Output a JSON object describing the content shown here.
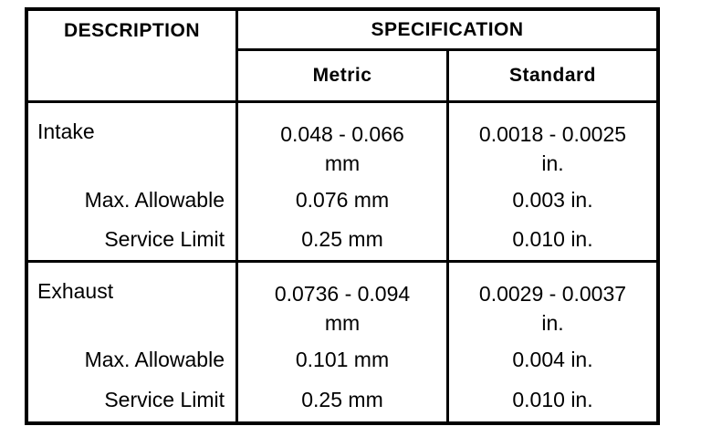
{
  "table": {
    "header": {
      "description": "DESCRIPTION",
      "specification": "SPECIFICATION",
      "metric": "Metric",
      "standard": "Standard"
    },
    "groups": [
      {
        "name": "Intake",
        "metric_range": "0.048 - 0.066",
        "metric_unit": "mm",
        "standard_range": "0.0018 - 0.0025",
        "standard_unit": "in.",
        "max_allowable": {
          "label": "Max. Allowable",
          "metric": "0.076 mm",
          "standard": "0.003 in."
        },
        "service_limit": {
          "label": "Service Limit",
          "metric": "0.25 mm",
          "standard": "0.010 in."
        }
      },
      {
        "name": "Exhaust",
        "metric_range": "0.0736 - 0.094",
        "metric_unit": "mm",
        "standard_range": "0.0029 - 0.0037",
        "standard_unit": "in.",
        "max_allowable": {
          "label": "Max. Allowable",
          "metric": "0.101 mm",
          "standard": "0.004 in."
        },
        "service_limit": {
          "label": "Service Limit",
          "metric": "0.25 mm",
          "standard": "0.010 in."
        }
      }
    ]
  }
}
